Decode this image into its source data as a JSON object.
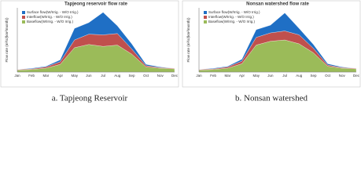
{
  "chart_data": [
    {
      "type": "stacked-area",
      "title": "Tapjeong reservoir flow rate",
      "ylabel": "Flow rate (m³/s/(km²/month))",
      "caption": "a. Tapjeong Reservoir",
      "categories": [
        "Jan",
        "Feb",
        "Mar",
        "Apr",
        "May",
        "Jun",
        "Jul",
        "Aug",
        "Sep",
        "Oct",
        "Nov",
        "Dec"
      ],
      "ylim": [
        0,
        1
      ],
      "legend": "upper left",
      "series": [
        {
          "name": "Baseflow(W/Irrig. - W/O Irrig.)",
          "color": "#9bbb59",
          "values": [
            0.03,
            0.04,
            0.06,
            0.12,
            0.38,
            0.43,
            0.4,
            0.42,
            0.28,
            0.08,
            0.06,
            0.05
          ]
        },
        {
          "name": "Interflow(W/Irrig. - W/O Irrig.)",
          "color": "#c0504d",
          "values": [
            0.01,
            0.01,
            0.02,
            0.04,
            0.12,
            0.16,
            0.18,
            0.18,
            0.08,
            0.02,
            0.01,
            0.01
          ]
        },
        {
          "name": "Surface flow(W/Irrig. - W/O Irrig.)",
          "color": "#1f6fc5",
          "values": [
            0,
            0.01,
            0.01,
            0.03,
            0.18,
            0.18,
            0.35,
            0.12,
            0.08,
            0.02,
            0.01,
            0
          ]
        }
      ]
    },
    {
      "type": "stacked-area",
      "title": "Nonsan watershed flow rate",
      "ylabel": "Flow rate (m³/s/(km²/month))",
      "caption": "b. Nonsan watershed",
      "categories": [
        "Jan",
        "Feb",
        "Mar",
        "Apr",
        "May",
        "Jun",
        "Jul",
        "Aug",
        "Sep",
        "Oct",
        "Nov",
        "Dec"
      ],
      "ylim": [
        0,
        1
      ],
      "legend": "upper left",
      "series": [
        {
          "name": "Baseflow(W/Irrig. - W/O Irrig.)",
          "color": "#9bbb59",
          "values": [
            0.03,
            0.04,
            0.06,
            0.13,
            0.42,
            0.48,
            0.5,
            0.44,
            0.3,
            0.09,
            0.06,
            0.05
          ]
        },
        {
          "name": "Interflow(W/Irrig. - W/O Irrig.)",
          "color": "#c0504d",
          "values": [
            0.01,
            0.01,
            0.02,
            0.04,
            0.12,
            0.13,
            0.14,
            0.14,
            0.07,
            0.02,
            0.01,
            0.01
          ]
        },
        {
          "name": "Surface flow(W/Irrig. - W/O Irrig.)",
          "color": "#1f6fc5",
          "values": [
            0,
            0.01,
            0.01,
            0.03,
            0.12,
            0.12,
            0.28,
            0.1,
            0.06,
            0.02,
            0.01,
            0
          ]
        }
      ]
    }
  ]
}
